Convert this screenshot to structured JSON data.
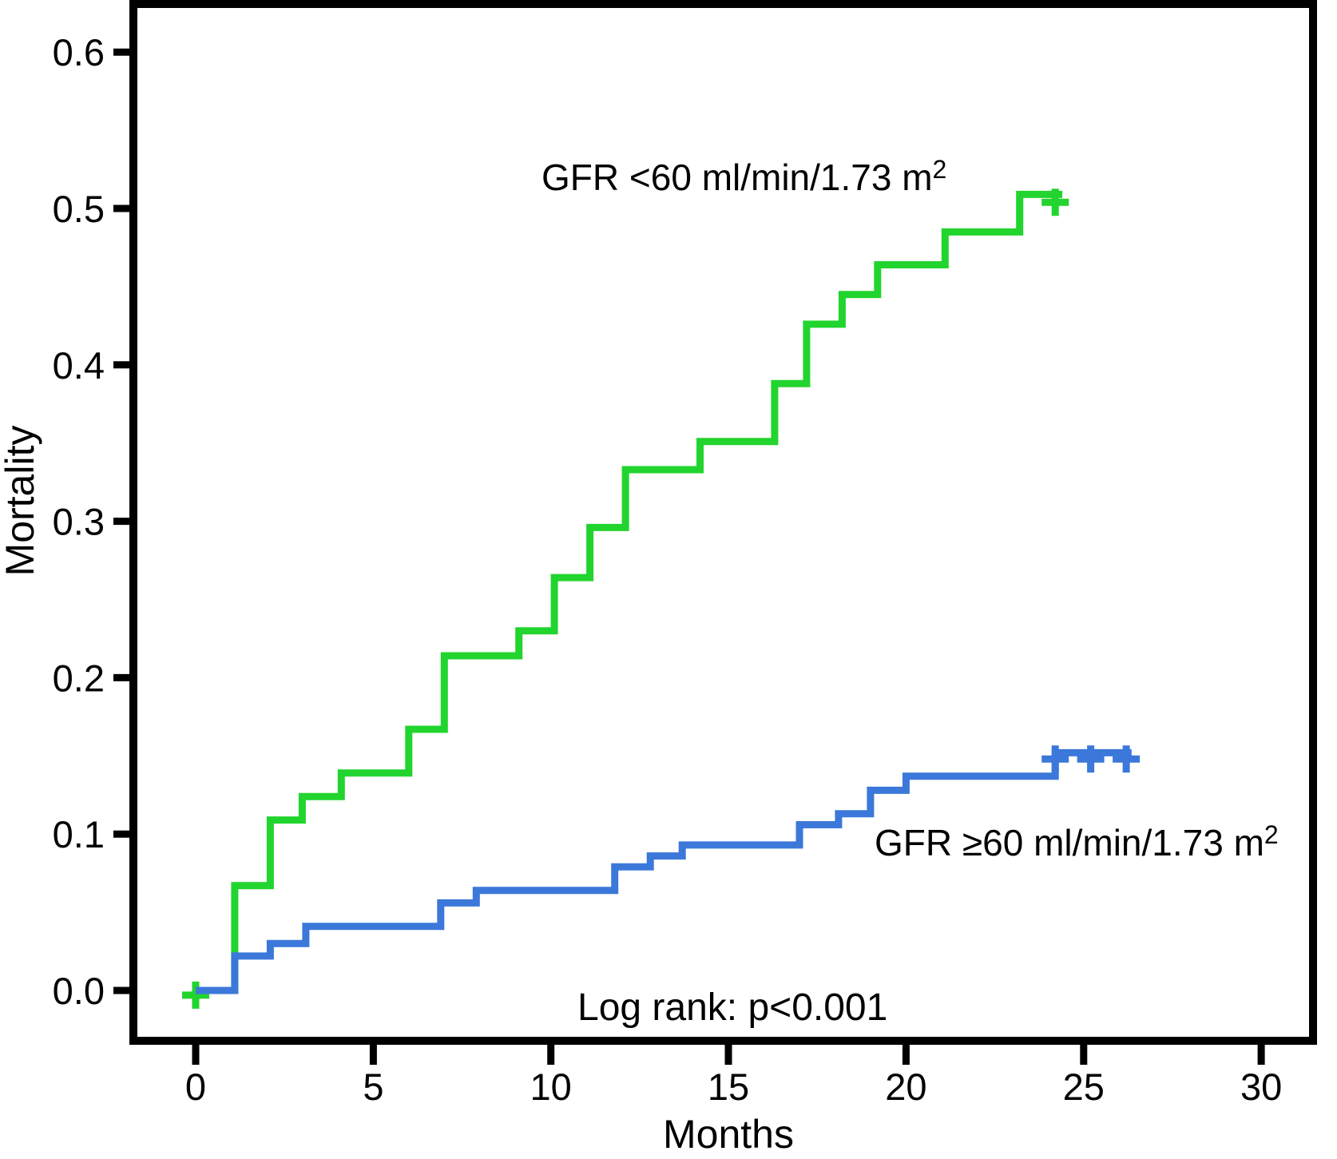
{
  "chart_data": {
    "type": "line",
    "subtype": "kaplan_meier_cumulative_step",
    "title": "",
    "xlabel": "Months",
    "ylabel": "Mortality",
    "xlim": [
      -1.8,
      31.5
    ],
    "ylim": [
      -0.032,
      0.632
    ],
    "grid": false,
    "legend_position": "inline-annotations",
    "xticks": {
      "values": [
        0,
        5,
        10,
        15,
        20,
        25,
        30
      ],
      "labels": [
        "0",
        "5",
        "10",
        "15",
        "20",
        "25",
        "30"
      ]
    },
    "yticks": {
      "values": [
        0.0,
        0.1,
        0.2,
        0.3,
        0.4,
        0.5,
        0.6
      ],
      "labels": [
        "0.0",
        "0.1",
        "0.2",
        "0.3",
        "0.4",
        "0.5",
        "0.6"
      ]
    },
    "annotation": "Log rank: p<0.001",
    "series": [
      {
        "name": "GFR <60 ml/min/1.73 m2",
        "label_main": "GFR <60 ml/min/1.73 m",
        "label_sup": "2",
        "color": "#22d42e",
        "start_month": 0,
        "start_value": 0,
        "end_month": 24.4,
        "steps": [
          [
            1.1,
            0.067
          ],
          [
            2.1,
            0.109
          ],
          [
            3.0,
            0.124
          ],
          [
            4.1,
            0.139
          ],
          [
            6.0,
            0.167
          ],
          [
            7.0,
            0.214
          ],
          [
            9.1,
            0.23
          ],
          [
            10.1,
            0.264
          ],
          [
            11.1,
            0.296
          ],
          [
            12.1,
            0.333
          ],
          [
            14.2,
            0.351
          ],
          [
            16.3,
            0.388
          ],
          [
            17.2,
            0.426
          ],
          [
            18.2,
            0.445
          ],
          [
            19.2,
            0.464
          ],
          [
            21.1,
            0.485
          ],
          [
            23.2,
            0.509
          ]
        ],
        "censor_marks": [
          [
            0,
            -0.003
          ],
          [
            24.2,
            0.504
          ]
        ]
      },
      {
        "name": "GFR ≥60 ml/min/1.73 m2",
        "label_main": "GFR ≥60 ml/min/1.73 m",
        "label_sup": "2",
        "color": "#3b78da",
        "start_month": 0,
        "start_value": 0,
        "end_month": 26.35,
        "steps": [
          [
            1.1,
            0.022
          ],
          [
            2.1,
            0.03
          ],
          [
            3.1,
            0.041
          ],
          [
            6.9,
            0.056
          ],
          [
            7.9,
            0.064
          ],
          [
            11.8,
            0.079
          ],
          [
            12.8,
            0.086
          ],
          [
            13.7,
            0.093
          ],
          [
            17.0,
            0.106
          ],
          [
            18.1,
            0.113
          ],
          [
            19.0,
            0.128
          ],
          [
            20.0,
            0.137
          ],
          [
            24.2,
            0.152
          ]
        ],
        "censor_marks": [
          [
            24.2,
            0.148
          ],
          [
            25.2,
            0.148
          ],
          [
            26.2,
            0.148
          ]
        ]
      }
    ]
  }
}
